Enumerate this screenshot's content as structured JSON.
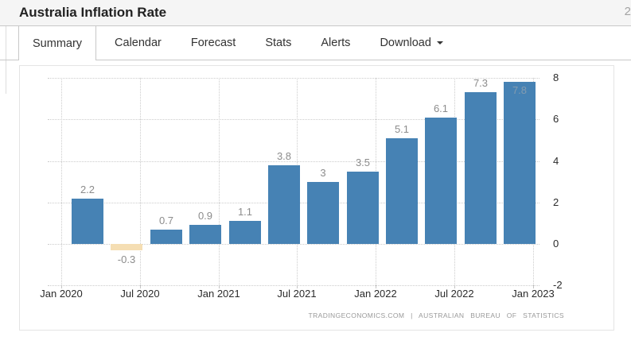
{
  "header": {
    "title": "Australia Inflation Rate",
    "corner_text": "2"
  },
  "tabs": [
    {
      "label": "Summary",
      "active": true
    },
    {
      "label": "Calendar",
      "active": false
    },
    {
      "label": "Forecast",
      "active": false
    },
    {
      "label": "Stats",
      "active": false
    },
    {
      "label": "Alerts",
      "active": false
    },
    {
      "label": "Download",
      "active": false,
      "has_menu": true
    }
  ],
  "chart_data": {
    "type": "bar",
    "title": "Australia Inflation Rate",
    "ylabel": "",
    "xlabel": "",
    "ylim": [
      -2,
      8
    ],
    "y_ticks": [
      8,
      6,
      4,
      2,
      0,
      -2
    ],
    "x_ticks": [
      "Jan 2020",
      "Jul 2020",
      "Jan 2021",
      "Jul 2021",
      "Jan 2022",
      "Jul 2022",
      "Jan 2023"
    ],
    "grid": "dotted",
    "legend": "none",
    "bars": [
      {
        "category": "2020-Q1",
        "value": 2.2,
        "label": "2.2"
      },
      {
        "category": "2020-Q2",
        "value": -0.3,
        "label": "-0.3"
      },
      {
        "category": "2020-Q3",
        "value": 0.7,
        "label": "0.7"
      },
      {
        "category": "2020-Q4",
        "value": 0.9,
        "label": "0.9"
      },
      {
        "category": "2021-Q1",
        "value": 1.1,
        "label": "1.1"
      },
      {
        "category": "2021-Q2",
        "value": 3.8,
        "label": "3.8"
      },
      {
        "category": "2021-Q3",
        "value": 3,
        "label": "3"
      },
      {
        "category": "2021-Q4",
        "value": 3.5,
        "label": "3.5"
      },
      {
        "category": "2022-Q1",
        "value": 5.1,
        "label": "5.1"
      },
      {
        "category": "2022-Q2",
        "value": 6.1,
        "label": "6.1"
      },
      {
        "category": "2022-Q3",
        "value": 7.3,
        "label": "7.3"
      },
      {
        "category": "2022-Q4",
        "value": 7.8,
        "label": "7.8"
      }
    ],
    "bar_color": "#4682b4",
    "negative_bar_color": "#f5deb3",
    "label_color": "#8c8c8c",
    "label_color_on_bar": "#849cb0",
    "axis_label_color": "#2b2b2b",
    "grid_color": "#cccccc",
    "source": "TRADINGECONOMICS.COM | AUSTRALIAN BUREAU OF STATISTICS"
  }
}
